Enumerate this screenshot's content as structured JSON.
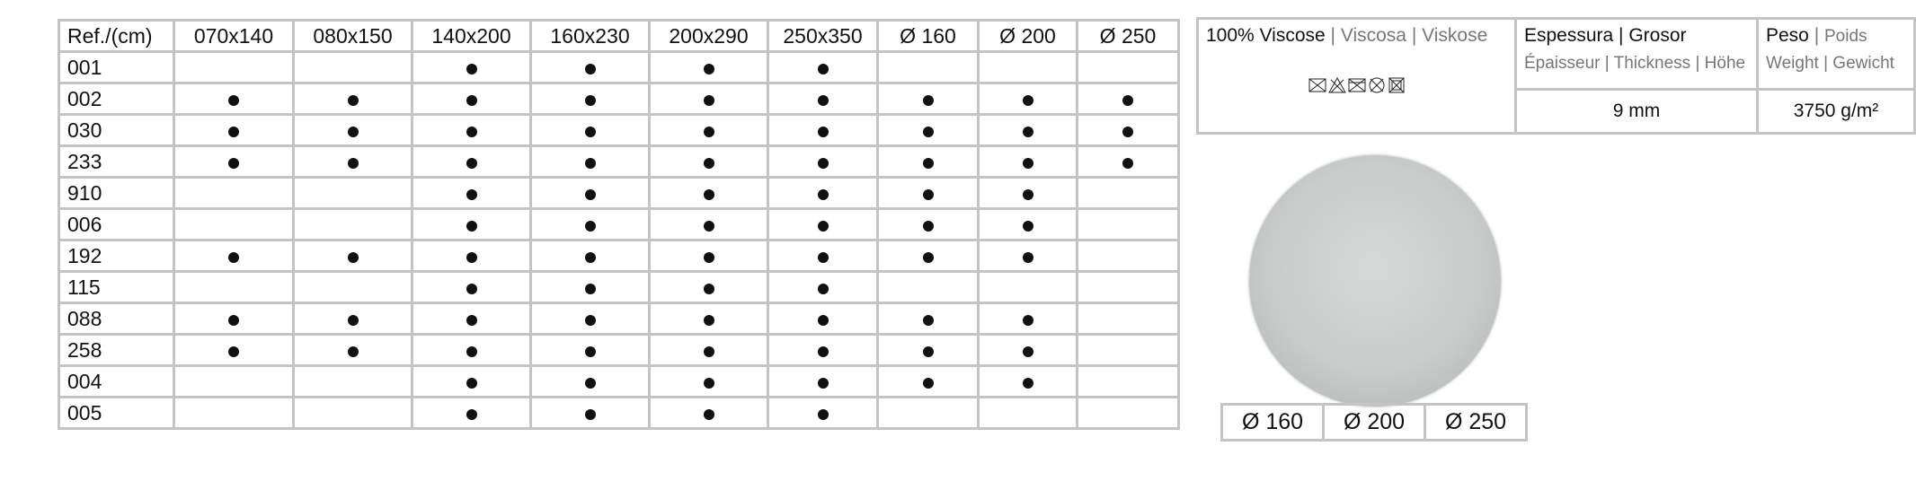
{
  "size_table": {
    "header": [
      "Ref./(cm)",
      "070x140",
      "080x150",
      "140x200",
      "160x230",
      "200x290",
      "250x350",
      "Ø 160",
      "Ø 200",
      "Ø 250"
    ],
    "rows": [
      {
        "ref": "001",
        "available": [
          0,
          0,
          1,
          1,
          1,
          1,
          0,
          0,
          0
        ]
      },
      {
        "ref": "002",
        "available": [
          1,
          1,
          1,
          1,
          1,
          1,
          1,
          1,
          1
        ]
      },
      {
        "ref": "030",
        "available": [
          1,
          1,
          1,
          1,
          1,
          1,
          1,
          1,
          1
        ]
      },
      {
        "ref": "233",
        "available": [
          1,
          1,
          1,
          1,
          1,
          1,
          1,
          1,
          1
        ]
      },
      {
        "ref": "910",
        "available": [
          0,
          0,
          1,
          1,
          1,
          1,
          1,
          1,
          0
        ]
      },
      {
        "ref": "006",
        "available": [
          0,
          0,
          1,
          1,
          1,
          1,
          1,
          1,
          0
        ]
      },
      {
        "ref": "192",
        "available": [
          1,
          1,
          1,
          1,
          1,
          1,
          1,
          1,
          0
        ]
      },
      {
        "ref": "115",
        "available": [
          0,
          0,
          1,
          1,
          1,
          1,
          0,
          0,
          0
        ]
      },
      {
        "ref": "088",
        "available": [
          1,
          1,
          1,
          1,
          1,
          1,
          1,
          1,
          0
        ]
      },
      {
        "ref": "258",
        "available": [
          1,
          1,
          1,
          1,
          1,
          1,
          1,
          1,
          0
        ]
      },
      {
        "ref": "004",
        "available": [
          0,
          0,
          1,
          1,
          1,
          1,
          1,
          1,
          0
        ]
      },
      {
        "ref": "005",
        "available": [
          0,
          0,
          1,
          1,
          1,
          1,
          0,
          0,
          0
        ]
      }
    ]
  },
  "spec": {
    "composition": "100% Viscose",
    "composition_translations": "Viscosa | Viskose",
    "care_icons": [
      "no-wash-icon",
      "no-bleach-icon",
      "no-tumble-dry-icon",
      "no-dry-clean-icon",
      "no-iron-icon"
    ],
    "thickness_label": "Espessura | Grosor",
    "thickness_translations": "Épaisseur | Thickness | Höhe",
    "thickness_value": "9 mm",
    "weight_label": "Peso",
    "weight_translations_1": "Poids",
    "weight_translations_2": "Weight | Gewicht",
    "weight_value": "3750 g/m²"
  },
  "rug_sizes": [
    "Ø 160",
    "Ø 200",
    "Ø 250"
  ]
}
